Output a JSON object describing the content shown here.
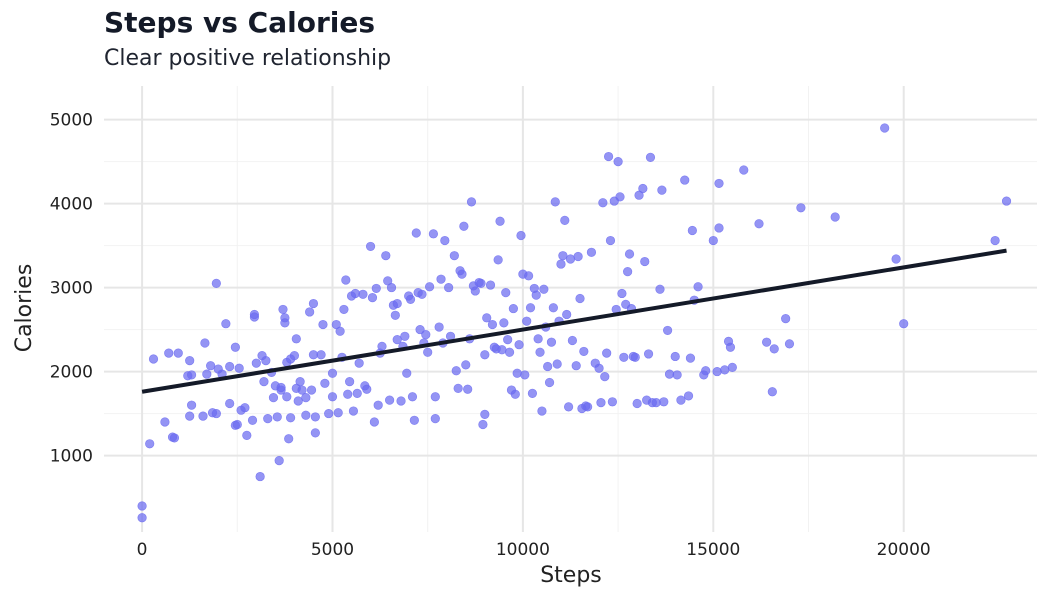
{
  "chart_data": {
    "type": "scatter",
    "title": "Steps vs Calories",
    "subtitle": "Clear positive relationship",
    "xlabel": "Steps",
    "ylabel": "Calories",
    "xlim": [
      -1000,
      23500
    ],
    "ylim": [
      90,
      5400
    ],
    "x_ticks": [
      0,
      5000,
      10000,
      15000,
      20000
    ],
    "y_ticks": [
      1000,
      2000,
      3000,
      4000,
      5000
    ],
    "x_tick_labels": [
      "0",
      "5000",
      "10000",
      "15000",
      "20000"
    ],
    "y_tick_labels": [
      "1000",
      "2000",
      "3000",
      "4000",
      "5000"
    ],
    "grid": true,
    "colors": {
      "points": "#6b6bf0",
      "trend": "#141a28",
      "grid": "#e6e6e6"
    },
    "trend_line": {
      "x": [
        0,
        22700
      ],
      "y": [
        1760,
        3440
      ]
    },
    "points": [
      [
        0,
        260
      ],
      [
        0,
        400
      ],
      [
        200,
        1140
      ],
      [
        300,
        2150
      ],
      [
        600,
        1400
      ],
      [
        700,
        2220
      ],
      [
        800,
        1220
      ],
      [
        850,
        1210
      ],
      [
        950,
        2220
      ],
      [
        1200,
        1950
      ],
      [
        1250,
        2130
      ],
      [
        1300,
        1960
      ],
      [
        1300,
        1600
      ],
      [
        1250,
        1470
      ],
      [
        1600,
        1470
      ],
      [
        1650,
        2340
      ],
      [
        1700,
        1970
      ],
      [
        1800,
        2070
      ],
      [
        1850,
        1510
      ],
      [
        1950,
        1500
      ],
      [
        1950,
        3050
      ],
      [
        2000,
        2030
      ],
      [
        2100,
        1970
      ],
      [
        2200,
        2570
      ],
      [
        2300,
        1620
      ],
      [
        2300,
        2060
      ],
      [
        2450,
        2290
      ],
      [
        2450,
        1360
      ],
      [
        2500,
        1370
      ],
      [
        2550,
        2040
      ],
      [
        2600,
        1540
      ],
      [
        2700,
        1570
      ],
      [
        2750,
        1240
      ],
      [
        2900,
        1420
      ],
      [
        2950,
        2680
      ],
      [
        2950,
        2650
      ],
      [
        3000,
        2100
      ],
      [
        3100,
        750
      ],
      [
        3150,
        2190
      ],
      [
        3200,
        1880
      ],
      [
        3250,
        2130
      ],
      [
        3300,
        1440
      ],
      [
        3400,
        1990
      ],
      [
        3450,
        1690
      ],
      [
        3500,
        1830
      ],
      [
        3550,
        1460
      ],
      [
        3600,
        940
      ],
      [
        3650,
        1780
      ],
      [
        3650,
        1810
      ],
      [
        3700,
        2740
      ],
      [
        3750,
        2640
      ],
      [
        3750,
        2580
      ],
      [
        3800,
        2110
      ],
      [
        3800,
        1700
      ],
      [
        3850,
        1200
      ],
      [
        3900,
        1450
      ],
      [
        3900,
        2150
      ],
      [
        4000,
        2190
      ],
      [
        4050,
        1800
      ],
      [
        4050,
        2390
      ],
      [
        4100,
        1650
      ],
      [
        4150,
        1880
      ],
      [
        4200,
        1780
      ],
      [
        4300,
        1690
      ],
      [
        4300,
        1480
      ],
      [
        4400,
        2710
      ],
      [
        4450,
        1780
      ],
      [
        4500,
        2810
      ],
      [
        4500,
        2200
      ],
      [
        4550,
        1270
      ],
      [
        4550,
        1460
      ],
      [
        4700,
        2200
      ],
      [
        4750,
        2560
      ],
      [
        4800,
        1860
      ],
      [
        4900,
        1500
      ],
      [
        5000,
        1980
      ],
      [
        5000,
        1700
      ],
      [
        5100,
        2560
      ],
      [
        5150,
        1510
      ],
      [
        5200,
        2480
      ],
      [
        5250,
        2170
      ],
      [
        5300,
        2740
      ],
      [
        5350,
        3090
      ],
      [
        5400,
        1730
      ],
      [
        5450,
        1880
      ],
      [
        5500,
        2900
      ],
      [
        5550,
        1530
      ],
      [
        5600,
        2930
      ],
      [
        5650,
        1740
      ],
      [
        5700,
        2100
      ],
      [
        5800,
        2920
      ],
      [
        5850,
        1830
      ],
      [
        5900,
        1790
      ],
      [
        6000,
        3490
      ],
      [
        6050,
        2880
      ],
      [
        6100,
        1400
      ],
      [
        6150,
        2990
      ],
      [
        6200,
        1600
      ],
      [
        6250,
        2220
      ],
      [
        6300,
        2300
      ],
      [
        6400,
        3380
      ],
      [
        6450,
        3080
      ],
      [
        6500,
        1660
      ],
      [
        6550,
        3000
      ],
      [
        6600,
        2790
      ],
      [
        6650,
        2670
      ],
      [
        6700,
        2810
      ],
      [
        6700,
        2380
      ],
      [
        6800,
        1650
      ],
      [
        6850,
        2300
      ],
      [
        6900,
        2420
      ],
      [
        6950,
        1980
      ],
      [
        7000,
        2900
      ],
      [
        7050,
        2860
      ],
      [
        7100,
        1700
      ],
      [
        7150,
        1420
      ],
      [
        7200,
        3650
      ],
      [
        7250,
        2940
      ],
      [
        7300,
        2500
      ],
      [
        7350,
        2920
      ],
      [
        7400,
        2340
      ],
      [
        7450,
        2440
      ],
      [
        7500,
        2230
      ],
      [
        7550,
        3010
      ],
      [
        7650,
        3640
      ],
      [
        7700,
        1700
      ],
      [
        7700,
        1440
      ],
      [
        7800,
        2530
      ],
      [
        7850,
        3100
      ],
      [
        7900,
        2340
      ],
      [
        7950,
        3560
      ],
      [
        8050,
        3000
      ],
      [
        8100,
        2420
      ],
      [
        8200,
        3380
      ],
      [
        8250,
        2010
      ],
      [
        8300,
        1800
      ],
      [
        8350,
        3200
      ],
      [
        8400,
        3160
      ],
      [
        8450,
        3730
      ],
      [
        8500,
        2080
      ],
      [
        8550,
        1790
      ],
      [
        8600,
        2390
      ],
      [
        8650,
        4020
      ],
      [
        8700,
        3020
      ],
      [
        8750,
        2960
      ],
      [
        8850,
        3060
      ],
      [
        8900,
        3050
      ],
      [
        8950,
        1370
      ],
      [
        9000,
        1490
      ],
      [
        9000,
        2200
      ],
      [
        9050,
        2640
      ],
      [
        9150,
        3030
      ],
      [
        9200,
        2560
      ],
      [
        9250,
        2290
      ],
      [
        9300,
        2270
      ],
      [
        9350,
        3330
      ],
      [
        9400,
        3790
      ],
      [
        9450,
        2260
      ],
      [
        9500,
        2580
      ],
      [
        9550,
        2940
      ],
      [
        9600,
        2380
      ],
      [
        9650,
        2230
      ],
      [
        9700,
        1780
      ],
      [
        9750,
        2750
      ],
      [
        9800,
        1730
      ],
      [
        9850,
        1980
      ],
      [
        9900,
        2320
      ],
      [
        9950,
        3620
      ],
      [
        10000,
        3160
      ],
      [
        10050,
        1960
      ],
      [
        10100,
        2600
      ],
      [
        10150,
        3140
      ],
      [
        10200,
        2760
      ],
      [
        10250,
        1740
      ],
      [
        10300,
        2990
      ],
      [
        10350,
        2910
      ],
      [
        10400,
        2390
      ],
      [
        10450,
        2230
      ],
      [
        10500,
        1530
      ],
      [
        10550,
        2980
      ],
      [
        10600,
        2530
      ],
      [
        10650,
        2060
      ],
      [
        10700,
        1870
      ],
      [
        10750,
        2350
      ],
      [
        10800,
        2760
      ],
      [
        10850,
        4020
      ],
      [
        10900,
        2090
      ],
      [
        10950,
        2600
      ],
      [
        11000,
        3280
      ],
      [
        11050,
        3380
      ],
      [
        11100,
        3800
      ],
      [
        11150,
        2680
      ],
      [
        11200,
        1580
      ],
      [
        11250,
        3340
      ],
      [
        11300,
        2370
      ],
      [
        11400,
        2070
      ],
      [
        11450,
        3370
      ],
      [
        11500,
        2870
      ],
      [
        11550,
        1560
      ],
      [
        11600,
        2240
      ],
      [
        11650,
        1590
      ],
      [
        11700,
        1580
      ],
      [
        11800,
        3420
      ],
      [
        11900,
        2100
      ],
      [
        12000,
        2040
      ],
      [
        12050,
        1630
      ],
      [
        12100,
        4010
      ],
      [
        12150,
        1940
      ],
      [
        12200,
        2220
      ],
      [
        12250,
        4560
      ],
      [
        12300,
        3560
      ],
      [
        12350,
        1640
      ],
      [
        12400,
        4030
      ],
      [
        12450,
        2740
      ],
      [
        12500,
        4500
      ],
      [
        12550,
        4080
      ],
      [
        12600,
        2930
      ],
      [
        12650,
        2170
      ],
      [
        12700,
        2800
      ],
      [
        12750,
        3190
      ],
      [
        12800,
        3400
      ],
      [
        12850,
        2750
      ],
      [
        12900,
        2180
      ],
      [
        12950,
        2170
      ],
      [
        13000,
        1620
      ],
      [
        13050,
        4100
      ],
      [
        13150,
        4180
      ],
      [
        13200,
        3310
      ],
      [
        13250,
        1660
      ],
      [
        13300,
        2210
      ],
      [
        13350,
        4550
      ],
      [
        13400,
        1630
      ],
      [
        13500,
        1630
      ],
      [
        13600,
        2980
      ],
      [
        13650,
        4160
      ],
      [
        13700,
        1640
      ],
      [
        13800,
        2490
      ],
      [
        13850,
        1970
      ],
      [
        14000,
        2180
      ],
      [
        14050,
        1960
      ],
      [
        14150,
        1660
      ],
      [
        14250,
        4280
      ],
      [
        14350,
        1710
      ],
      [
        14400,
        2160
      ],
      [
        14450,
        3680
      ],
      [
        14500,
        2850
      ],
      [
        14600,
        3010
      ],
      [
        14750,
        1960
      ],
      [
        14800,
        2010
      ],
      [
        15000,
        3560
      ],
      [
        15100,
        2000
      ],
      [
        15150,
        3710
      ],
      [
        15150,
        4240
      ],
      [
        15300,
        2020
      ],
      [
        15400,
        2360
      ],
      [
        15450,
        2290
      ],
      [
        15500,
        2050
      ],
      [
        15800,
        4400
      ],
      [
        16200,
        3760
      ],
      [
        16400,
        2350
      ],
      [
        16550,
        1760
      ],
      [
        16600,
        2270
      ],
      [
        16900,
        2630
      ],
      [
        17000,
        2330
      ],
      [
        17300,
        3950
      ],
      [
        18200,
        3840
      ],
      [
        19500,
        4900
      ],
      [
        19800,
        3340
      ],
      [
        20000,
        2570
      ],
      [
        22400,
        3560
      ],
      [
        22700,
        4030
      ]
    ]
  }
}
